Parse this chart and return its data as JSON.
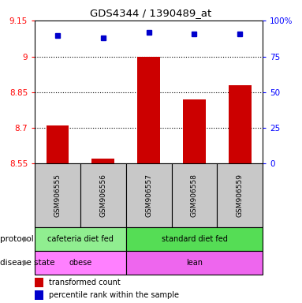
{
  "title": "GDS4344 / 1390489_at",
  "samples": [
    "GSM906555",
    "GSM906556",
    "GSM906557",
    "GSM906558",
    "GSM906559"
  ],
  "transformed_counts": [
    8.71,
    8.57,
    9.0,
    8.82,
    8.88
  ],
  "percentile_ranks": [
    90,
    88,
    92,
    91,
    91
  ],
  "ylim_left": [
    8.55,
    9.15
  ],
  "ylim_right": [
    0,
    100
  ],
  "yticks_left": [
    8.55,
    8.7,
    8.85,
    9.0,
    9.15
  ],
  "ytick_labels_left": [
    "8.55",
    "8.7",
    "8.85",
    "9",
    "9.15"
  ],
  "yticks_right": [
    0,
    25,
    50,
    75,
    100
  ],
  "ytick_labels_right": [
    "0",
    "25",
    "50",
    "75",
    "100%"
  ],
  "hlines": [
    8.7,
    8.85,
    9.0
  ],
  "bar_color": "#cc0000",
  "dot_color": "#0000cc",
  "bar_bottom": 8.55,
  "protocol_groups": [
    {
      "label": "cafeteria diet fed",
      "start": 0,
      "end": 2,
      "color": "#90ee90"
    },
    {
      "label": "standard diet fed",
      "start": 2,
      "end": 5,
      "color": "#55dd55"
    }
  ],
  "disease_groups": [
    {
      "label": "obese",
      "start": 0,
      "end": 2,
      "color": "#ff80ff"
    },
    {
      "label": "lean",
      "start": 2,
      "end": 5,
      "color": "#ee66ee"
    }
  ],
  "legend_items": [
    {
      "label": "transformed count",
      "color": "#cc0000"
    },
    {
      "label": "percentile rank within the sample",
      "color": "#0000cc"
    }
  ],
  "sample_bg_color": "#c8c8c8",
  "bar_width": 0.5
}
